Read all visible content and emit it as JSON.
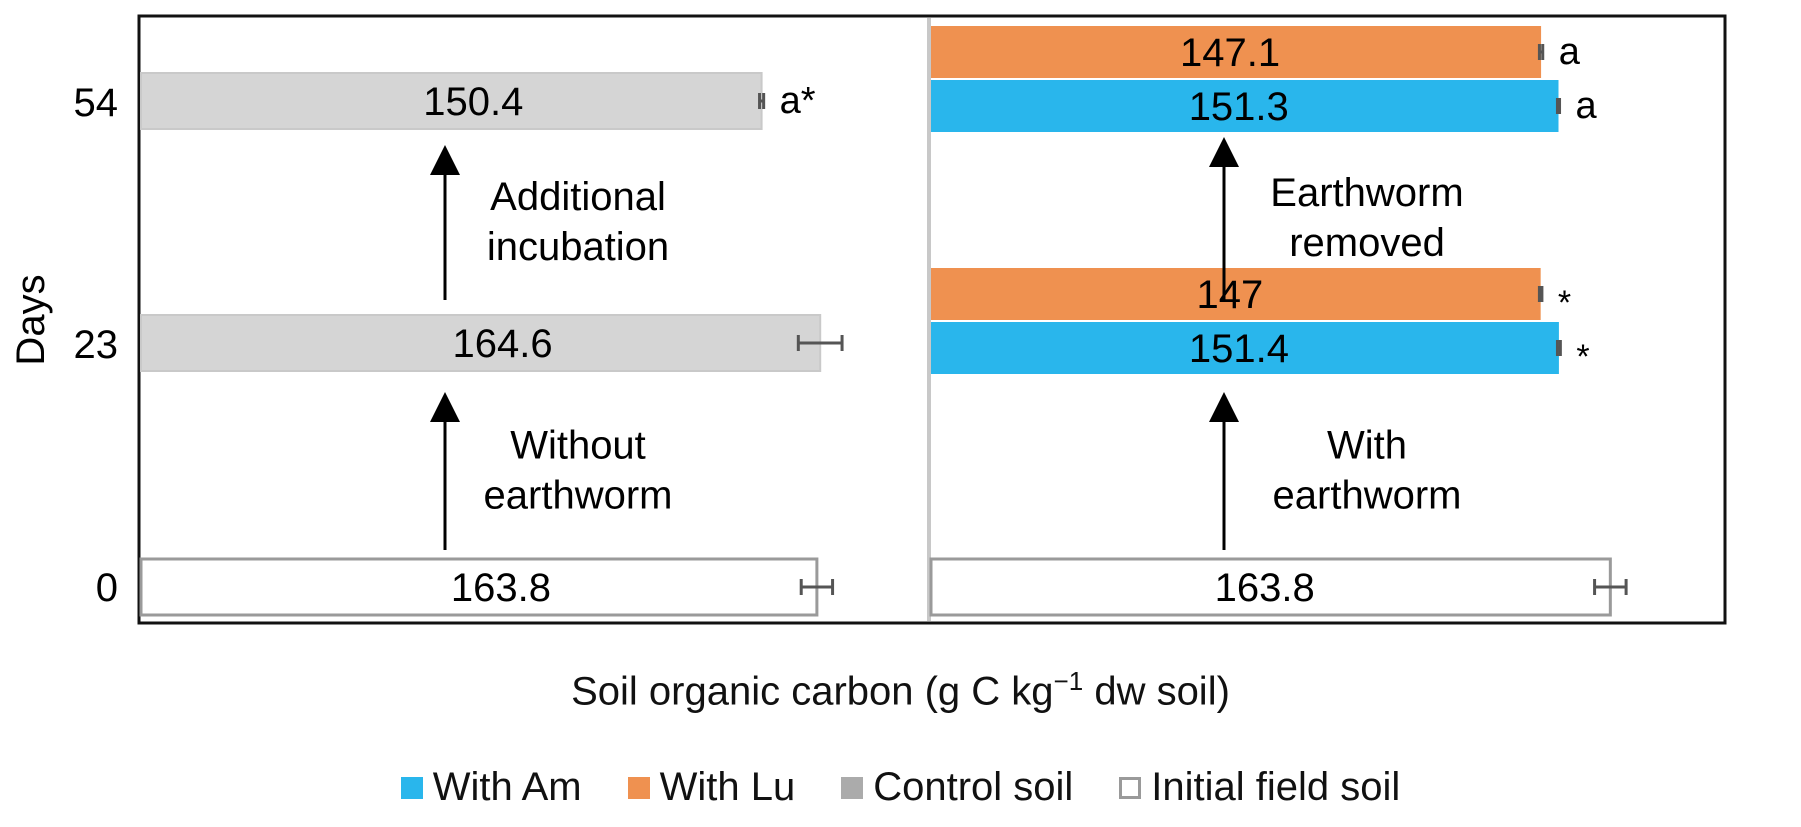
{
  "chart_data": {
    "type": "bar",
    "orientation": "horizontal",
    "ylabel": "Days",
    "xlabel": {
      "text": "Soil organic carbon (g C kg",
      "sup": "−1",
      "suffix": " dw soil)"
    },
    "y_ticks": [
      "54",
      "23",
      "0"
    ],
    "colors": {
      "With Am": "#29b6ec",
      "With Lu": "#ef9150",
      "Control soil": "#d5d5d5",
      "Initial field soil": "#ffffff"
    },
    "panels": [
      {
        "name": "left",
        "xlim": [
          0,
          190
        ],
        "bars": [
          {
            "day": "54",
            "series": "Control soil",
            "value": 150.4,
            "error": 0.5,
            "label": "150.4",
            "sig": "a*"
          },
          {
            "day": "23",
            "series": "Control soil",
            "value": 164.6,
            "error": 5.3,
            "label": "164.6",
            "sig": ""
          },
          {
            "day": "0",
            "series": "Initial field soil",
            "value": 163.8,
            "error": 3.8,
            "label": "163.8",
            "sig": ""
          }
        ],
        "arrows": [
          {
            "from": "0",
            "to": "23",
            "label": [
              "Without",
              "earthworm"
            ]
          },
          {
            "from": "23",
            "to": "54",
            "label": [
              "Additional",
              "incubation"
            ]
          }
        ]
      },
      {
        "name": "right",
        "xlim": [
          0,
          190
        ],
        "bars": [
          {
            "day": "54",
            "series": "With Lu",
            "value": 147.1,
            "error": 0.4,
            "label": "147.1",
            "sig": "a"
          },
          {
            "day": "54",
            "series": "With Am",
            "value": 151.3,
            "error": 0.25,
            "label": "151.3",
            "sig": "a"
          },
          {
            "day": "23",
            "series": "With Lu",
            "value": 147.0,
            "error": 0.3,
            "label": "147",
            "sig": "*"
          },
          {
            "day": "23",
            "series": "With Am",
            "value": 151.4,
            "error": 0.35,
            "label": "151.4",
            "sig": "*"
          },
          {
            "day": "0",
            "series": "Initial field soil",
            "value": 163.8,
            "error": 3.8,
            "label": "163.8",
            "sig": ""
          }
        ],
        "arrows": [
          {
            "from": "0",
            "to": "23",
            "label": [
              "With",
              "earthworm"
            ]
          },
          {
            "from": "23",
            "to": "54",
            "label": [
              "Earthworm",
              "removed"
            ]
          }
        ]
      }
    ],
    "legend": [
      "With Am",
      "With Lu",
      "Control soil",
      "Initial field soil"
    ]
  }
}
